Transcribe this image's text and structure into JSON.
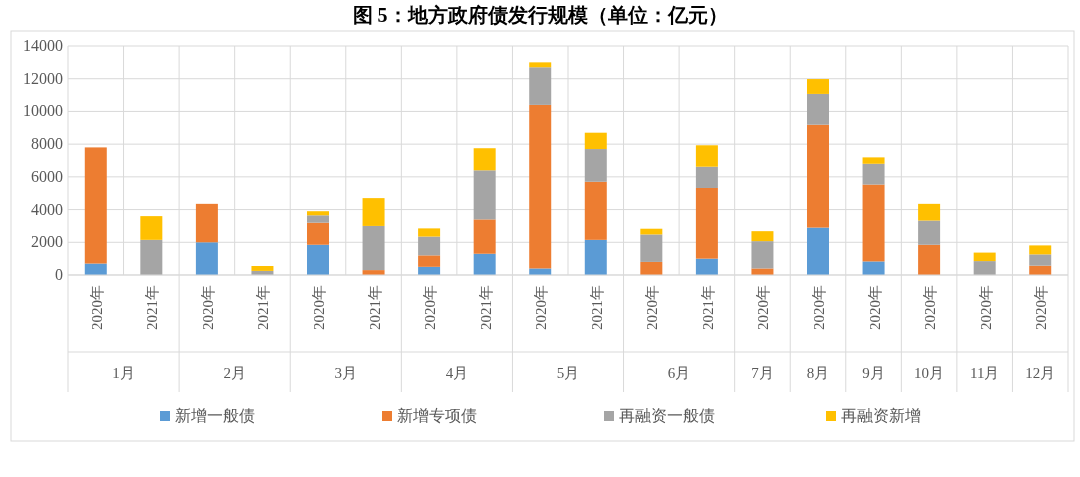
{
  "chart_data": {
    "type": "bar",
    "title": "图 5：地方政府债发行规模（单位：亿元）",
    "categories": [
      "2020年",
      "2021年",
      "2020年",
      "2021年",
      "2020年",
      "2021年",
      "2020年",
      "2021年",
      "2020年",
      "2021年",
      "2020年",
      "2021年",
      "2020年",
      "2020年",
      "2020年",
      "2020年",
      "2020年",
      "2020年"
    ],
    "annotations": [
      "1月",
      "2月",
      "3月",
      "4月",
      "5月",
      "6月",
      "7月",
      "8月",
      "9月",
      "10月",
      "11月",
      "12月"
    ],
    "stacked": true,
    "series": [
      {
        "name": "新增一般债",
        "color": "#5b9bd5",
        "values": [
          700,
          0,
          2000,
          0,
          1850,
          0,
          500,
          1300,
          400,
          2150,
          0,
          1000,
          0,
          2900,
          830,
          0,
          0,
          0
        ]
      },
      {
        "name": "新增专项债",
        "color": "#ed7d31",
        "values": [
          7100,
          0,
          2350,
          0,
          1350,
          300,
          700,
          2100,
          10000,
          3550,
          800,
          4320,
          400,
          6290,
          4700,
          1850,
          0,
          570
        ]
      },
      {
        "name": "再融资一般债",
        "color": "#a5a5a5",
        "values": [
          0,
          2150,
          0,
          250,
          450,
          2700,
          1150,
          3000,
          2300,
          2000,
          1680,
          1300,
          1670,
          1880,
          1270,
          1480,
          850,
          690
        ]
      },
      {
        "name": "再融资新增",
        "color": "#ffc000",
        "values": [
          0,
          1450,
          0,
          300,
          250,
          1700,
          500,
          1350,
          300,
          1000,
          350,
          1310,
          610,
          910,
          390,
          1020,
          520,
          550
        ]
      }
    ],
    "ylim": [
      0,
      14000
    ],
    "yticks": [
      0,
      2000,
      4000,
      6000,
      8000,
      10000,
      12000,
      14000
    ],
    "grid": true,
    "legend": "bottom"
  }
}
